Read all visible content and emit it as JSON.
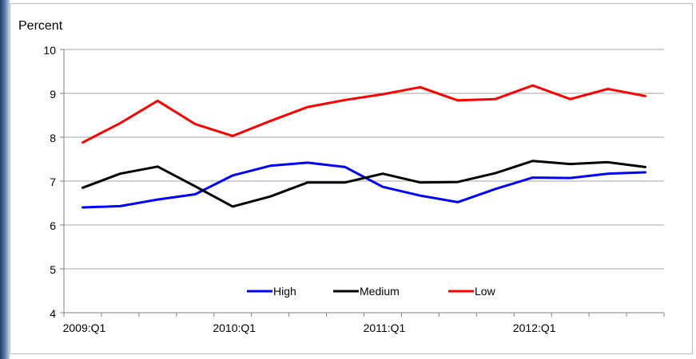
{
  "chart_data": {
    "type": "line",
    "ylabel": "Percent",
    "xlabel": "",
    "title": "",
    "ylim": [
      4,
      10
    ],
    "yticks": [
      4,
      5,
      6,
      7,
      8,
      9,
      10
    ],
    "grid": true,
    "legend_position": "bottom-center",
    "x": [
      "2009:Q1",
      "2009:Q2",
      "2009:Q3",
      "2009:Q4",
      "2010:Q1",
      "2010:Q2",
      "2010:Q3",
      "2010:Q4",
      "2011:Q1",
      "2011:Q2",
      "2011:Q3",
      "2011:Q4",
      "2012:Q1",
      "2012:Q2",
      "2012:Q3",
      "2012:Q4"
    ],
    "xtick_labels": [
      "2009:Q1",
      "2010:Q1",
      "2011:Q1",
      "2012:Q1"
    ],
    "series": [
      {
        "name": "High",
        "color": "#0000ff",
        "values": [
          6.4,
          6.43,
          6.58,
          6.7,
          7.13,
          7.35,
          7.42,
          7.32,
          6.87,
          6.67,
          6.52,
          6.82,
          7.08,
          7.07,
          7.17,
          7.2
        ]
      },
      {
        "name": "Medium",
        "color": "#000000",
        "values": [
          6.85,
          7.17,
          7.33,
          6.88,
          6.42,
          6.65,
          6.97,
          6.97,
          7.17,
          6.97,
          6.98,
          7.18,
          7.46,
          7.39,
          7.43,
          7.32
        ]
      },
      {
        "name": "Low",
        "color": "#ff0000",
        "values": [
          7.88,
          8.32,
          8.83,
          8.3,
          8.03,
          8.37,
          8.69,
          8.85,
          8.98,
          9.14,
          8.84,
          8.87,
          9.18,
          8.87,
          9.1,
          8.94
        ]
      }
    ]
  }
}
